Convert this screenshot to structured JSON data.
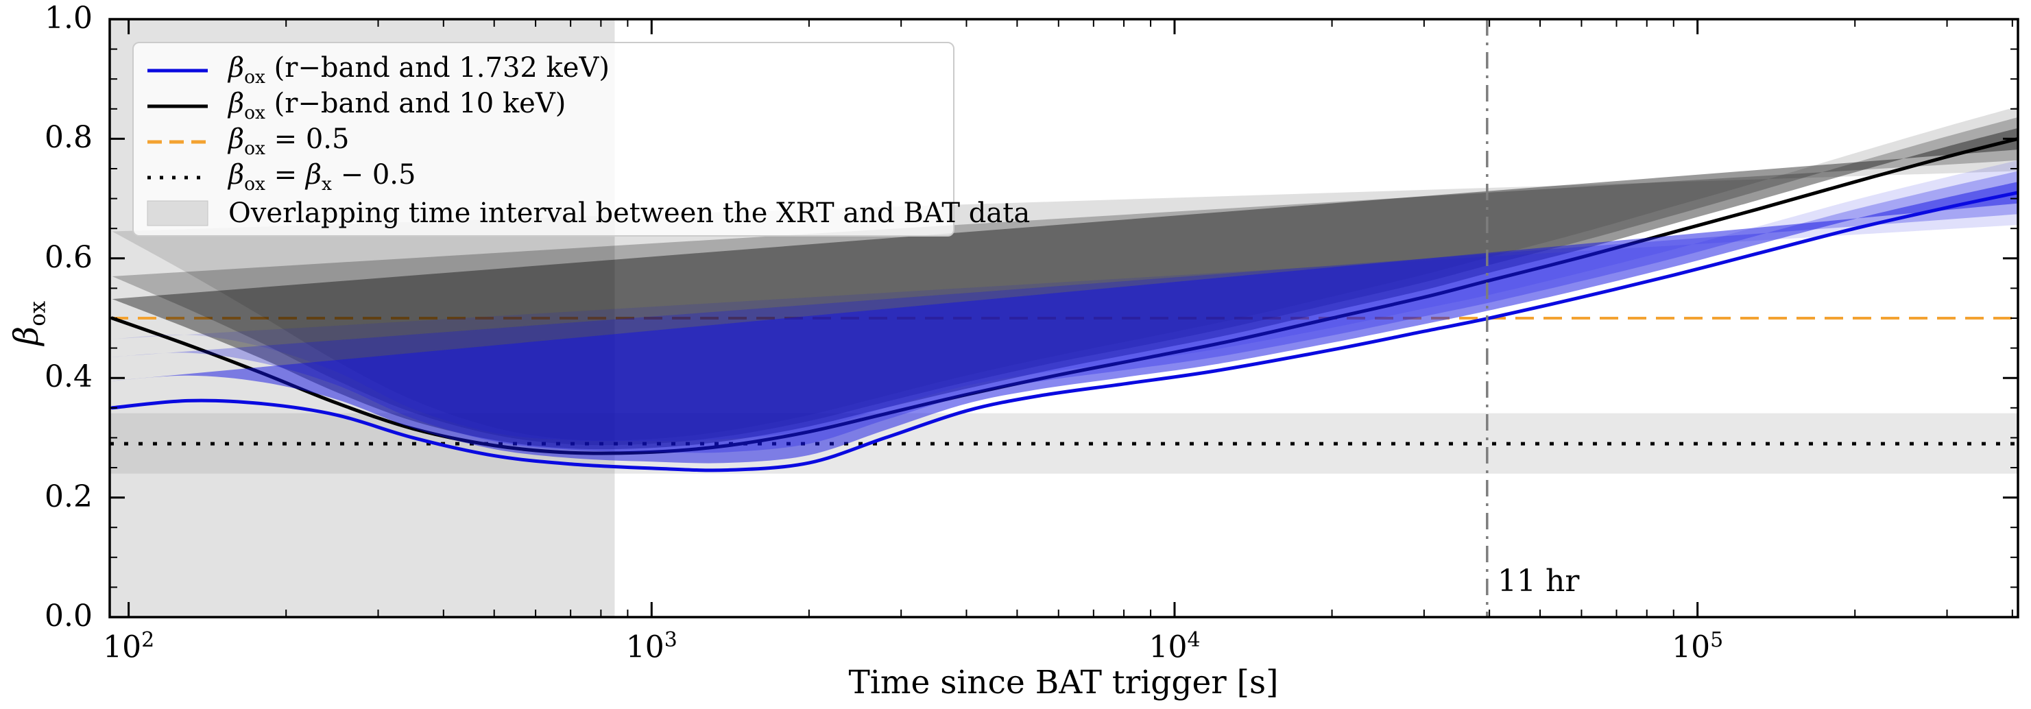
{
  "figure_title": "beta_ox evolution versus time since BAT trigger",
  "chart_data": {
    "type": "line",
    "x_scale": "log",
    "xlabel": "Time since BAT trigger [s]",
    "ylabel_main": "β",
    "ylabel_sub": "ox",
    "xlim": [
      92,
      410000
    ],
    "ylim": [
      0.0,
      1.0
    ],
    "x_ticks": [
      100,
      1000,
      10000,
      100000
    ],
    "x_tick_labels": [
      {
        "base": "10",
        "exp": "2"
      },
      {
        "base": "10",
        "exp": "3"
      },
      {
        "base": "10",
        "exp": "4"
      },
      {
        "base": "10",
        "exp": "5"
      }
    ],
    "y_ticks": [
      "0.0",
      "0.2",
      "0.4",
      "0.6",
      "0.8",
      "1.0"
    ],
    "y_minor_step": 0.05,
    "grid": false,
    "legend_position": "upper left",
    "series": [
      {
        "name": "β_ox (r−band and 10 keV)",
        "color": "#000000",
        "band_alphas": [
          0.4,
          0.24,
          0.12
        ],
        "x": [
          93,
          130,
          180,
          250,
          350,
          500,
          700,
          1000,
          1400,
          2000,
          2800,
          4000,
          6000,
          9000,
          13000,
          20000,
          30000,
          40000,
          60000,
          90000,
          130000,
          200000,
          300000,
          410000
        ],
        "y": [
          0.5,
          0.455,
          0.408,
          0.358,
          0.315,
          0.287,
          0.275,
          0.276,
          0.287,
          0.31,
          0.34,
          0.372,
          0.405,
          0.435,
          0.463,
          0.5,
          0.535,
          0.563,
          0.602,
          0.644,
          0.682,
          0.728,
          0.77,
          0.8
        ],
        "sigma1": [
          0.032,
          0.028,
          0.024,
          0.018,
          0.013,
          0.009,
          0.007,
          0.007,
          0.008,
          0.009,
          0.01,
          0.01,
          0.011,
          0.011,
          0.011,
          0.012,
          0.012,
          0.013,
          0.013,
          0.014,
          0.015,
          0.016,
          0.017,
          0.018
        ],
        "sigma2": [
          0.07,
          0.06,
          0.05,
          0.038,
          0.027,
          0.018,
          0.014,
          0.014,
          0.016,
          0.018,
          0.02,
          0.021,
          0.022,
          0.022,
          0.023,
          0.024,
          0.025,
          0.026,
          0.027,
          0.028,
          0.03,
          0.032,
          0.034,
          0.036
        ],
        "sigma3": [
          0.145,
          0.12,
          0.095,
          0.07,
          0.048,
          0.03,
          0.022,
          0.022,
          0.025,
          0.028,
          0.03,
          0.032,
          0.033,
          0.034,
          0.035,
          0.036,
          0.038,
          0.039,
          0.041,
          0.043,
          0.045,
          0.048,
          0.051,
          0.054
        ]
      },
      {
        "name": "β_ox (r−band and 1.732 keV)",
        "color": "#0a0ae0",
        "band_alphas": [
          0.5,
          0.28,
          0.13
        ],
        "x": [
          93,
          130,
          180,
          250,
          350,
          500,
          700,
          1000,
          1400,
          2000,
          2800,
          4000,
          5500,
          8000,
          12000,
          20000,
          30000,
          40000,
          60000,
          90000,
          130000,
          200000,
          300000,
          410000
        ],
        "y": [
          0.35,
          0.362,
          0.357,
          0.338,
          0.3,
          0.27,
          0.256,
          0.249,
          0.246,
          0.258,
          0.3,
          0.345,
          0.37,
          0.39,
          0.412,
          0.447,
          0.478,
          0.5,
          0.535,
          0.572,
          0.608,
          0.65,
          0.685,
          0.71
        ],
        "sigma1": [
          0.045,
          0.042,
          0.036,
          0.026,
          0.016,
          0.011,
          0.01,
          0.011,
          0.012,
          0.013,
          0.013,
          0.012,
          0.011,
          0.011,
          0.011,
          0.012,
          0.012,
          0.013,
          0.013,
          0.014,
          0.015,
          0.016,
          0.017,
          0.018
        ],
        "sigma2": [
          0.085,
          0.08,
          0.068,
          0.05,
          0.032,
          0.024,
          0.024,
          0.027,
          0.03,
          0.032,
          0.03,
          0.026,
          0.024,
          0.023,
          0.023,
          0.024,
          0.025,
          0.026,
          0.027,
          0.028,
          0.03,
          0.032,
          0.034,
          0.036
        ],
        "sigma3": [
          0.115,
          0.11,
          0.095,
          0.072,
          0.048,
          0.038,
          0.04,
          0.046,
          0.052,
          0.055,
          0.05,
          0.042,
          0.038,
          0.036,
          0.036,
          0.037,
          0.038,
          0.039,
          0.041,
          0.043,
          0.045,
          0.048,
          0.051,
          0.054
        ]
      }
    ],
    "reference_lines": [
      {
        "type": "hline",
        "y": 0.5,
        "style": "dashed",
        "color": "#f3a231",
        "label": "β_ox = 0.5"
      },
      {
        "type": "hline",
        "y": 0.29,
        "style": "dotted",
        "color": "#000000",
        "label": "β_ox = β_x − 0.5",
        "band": [
          0.24,
          0.341
        ]
      },
      {
        "type": "vline",
        "x": 39600,
        "style": "dashdot",
        "color": "#7d7d7d",
        "label": "11 hr"
      }
    ],
    "shaded_region": {
      "label": "Overlapping time interval between the XRT and BAT data",
      "x_start": 92,
      "x_end": 850,
      "color": "#e2e2e2"
    },
    "annotations": [
      {
        "label": "11 hr",
        "x": 39600
      }
    ]
  },
  "legend": {
    "items": [
      {
        "label": "β_ox (r−band and 1.732 keV)",
        "sample": {
          "kind": "line",
          "color": "#0a0ae0",
          "dash": ""
        },
        "parts": [
          [
            "β",
            "i"
          ],
          [
            "ox",
            "s"
          ],
          [
            " (r−band and 1.732 keV)",
            ""
          ]
        ]
      },
      {
        "label": "β_ox (r−band and 10 keV)",
        "sample": {
          "kind": "line",
          "color": "#000000",
          "dash": ""
        },
        "parts": [
          [
            "β",
            "i"
          ],
          [
            "ox",
            "s"
          ],
          [
            " (r−band and 10 keV)",
            ""
          ]
        ]
      },
      {
        "label": "β_ox = 0.5",
        "sample": {
          "kind": "line",
          "color": "#f3a231",
          "dash": "21 11"
        },
        "parts": [
          [
            "β",
            "i"
          ],
          [
            "ox",
            "s"
          ],
          [
            " = 0.5",
            ""
          ]
        ]
      },
      {
        "label": "β_ox = β_x − 0.5",
        "sample": {
          "kind": "line",
          "color": "#000000",
          "dash": "5 13"
        },
        "parts": [
          [
            "β",
            "i"
          ],
          [
            "ox",
            "s"
          ],
          [
            " = ",
            ""
          ],
          [
            "β",
            "i"
          ],
          [
            "x",
            "s"
          ],
          [
            " − 0.5",
            ""
          ]
        ]
      },
      {
        "label": "Overlapping time interval between the XRT and BAT data",
        "sample": {
          "kind": "patch",
          "fill": "#dcdcdc",
          "stroke": "#c4c4c4"
        },
        "parts": [
          [
            "Overlapping time interval between the XRT and BAT data",
            ""
          ]
        ]
      }
    ]
  },
  "colors": {
    "background": "#ffffff",
    "spine": "#000000",
    "vertical_region_fill": "rgba(185,185,185,0.42)",
    "horizontal_band_fill": "rgba(130,130,130,0.18)",
    "orange_dashed": "#f3a231",
    "vline_gray": "#7d7d7d"
  }
}
